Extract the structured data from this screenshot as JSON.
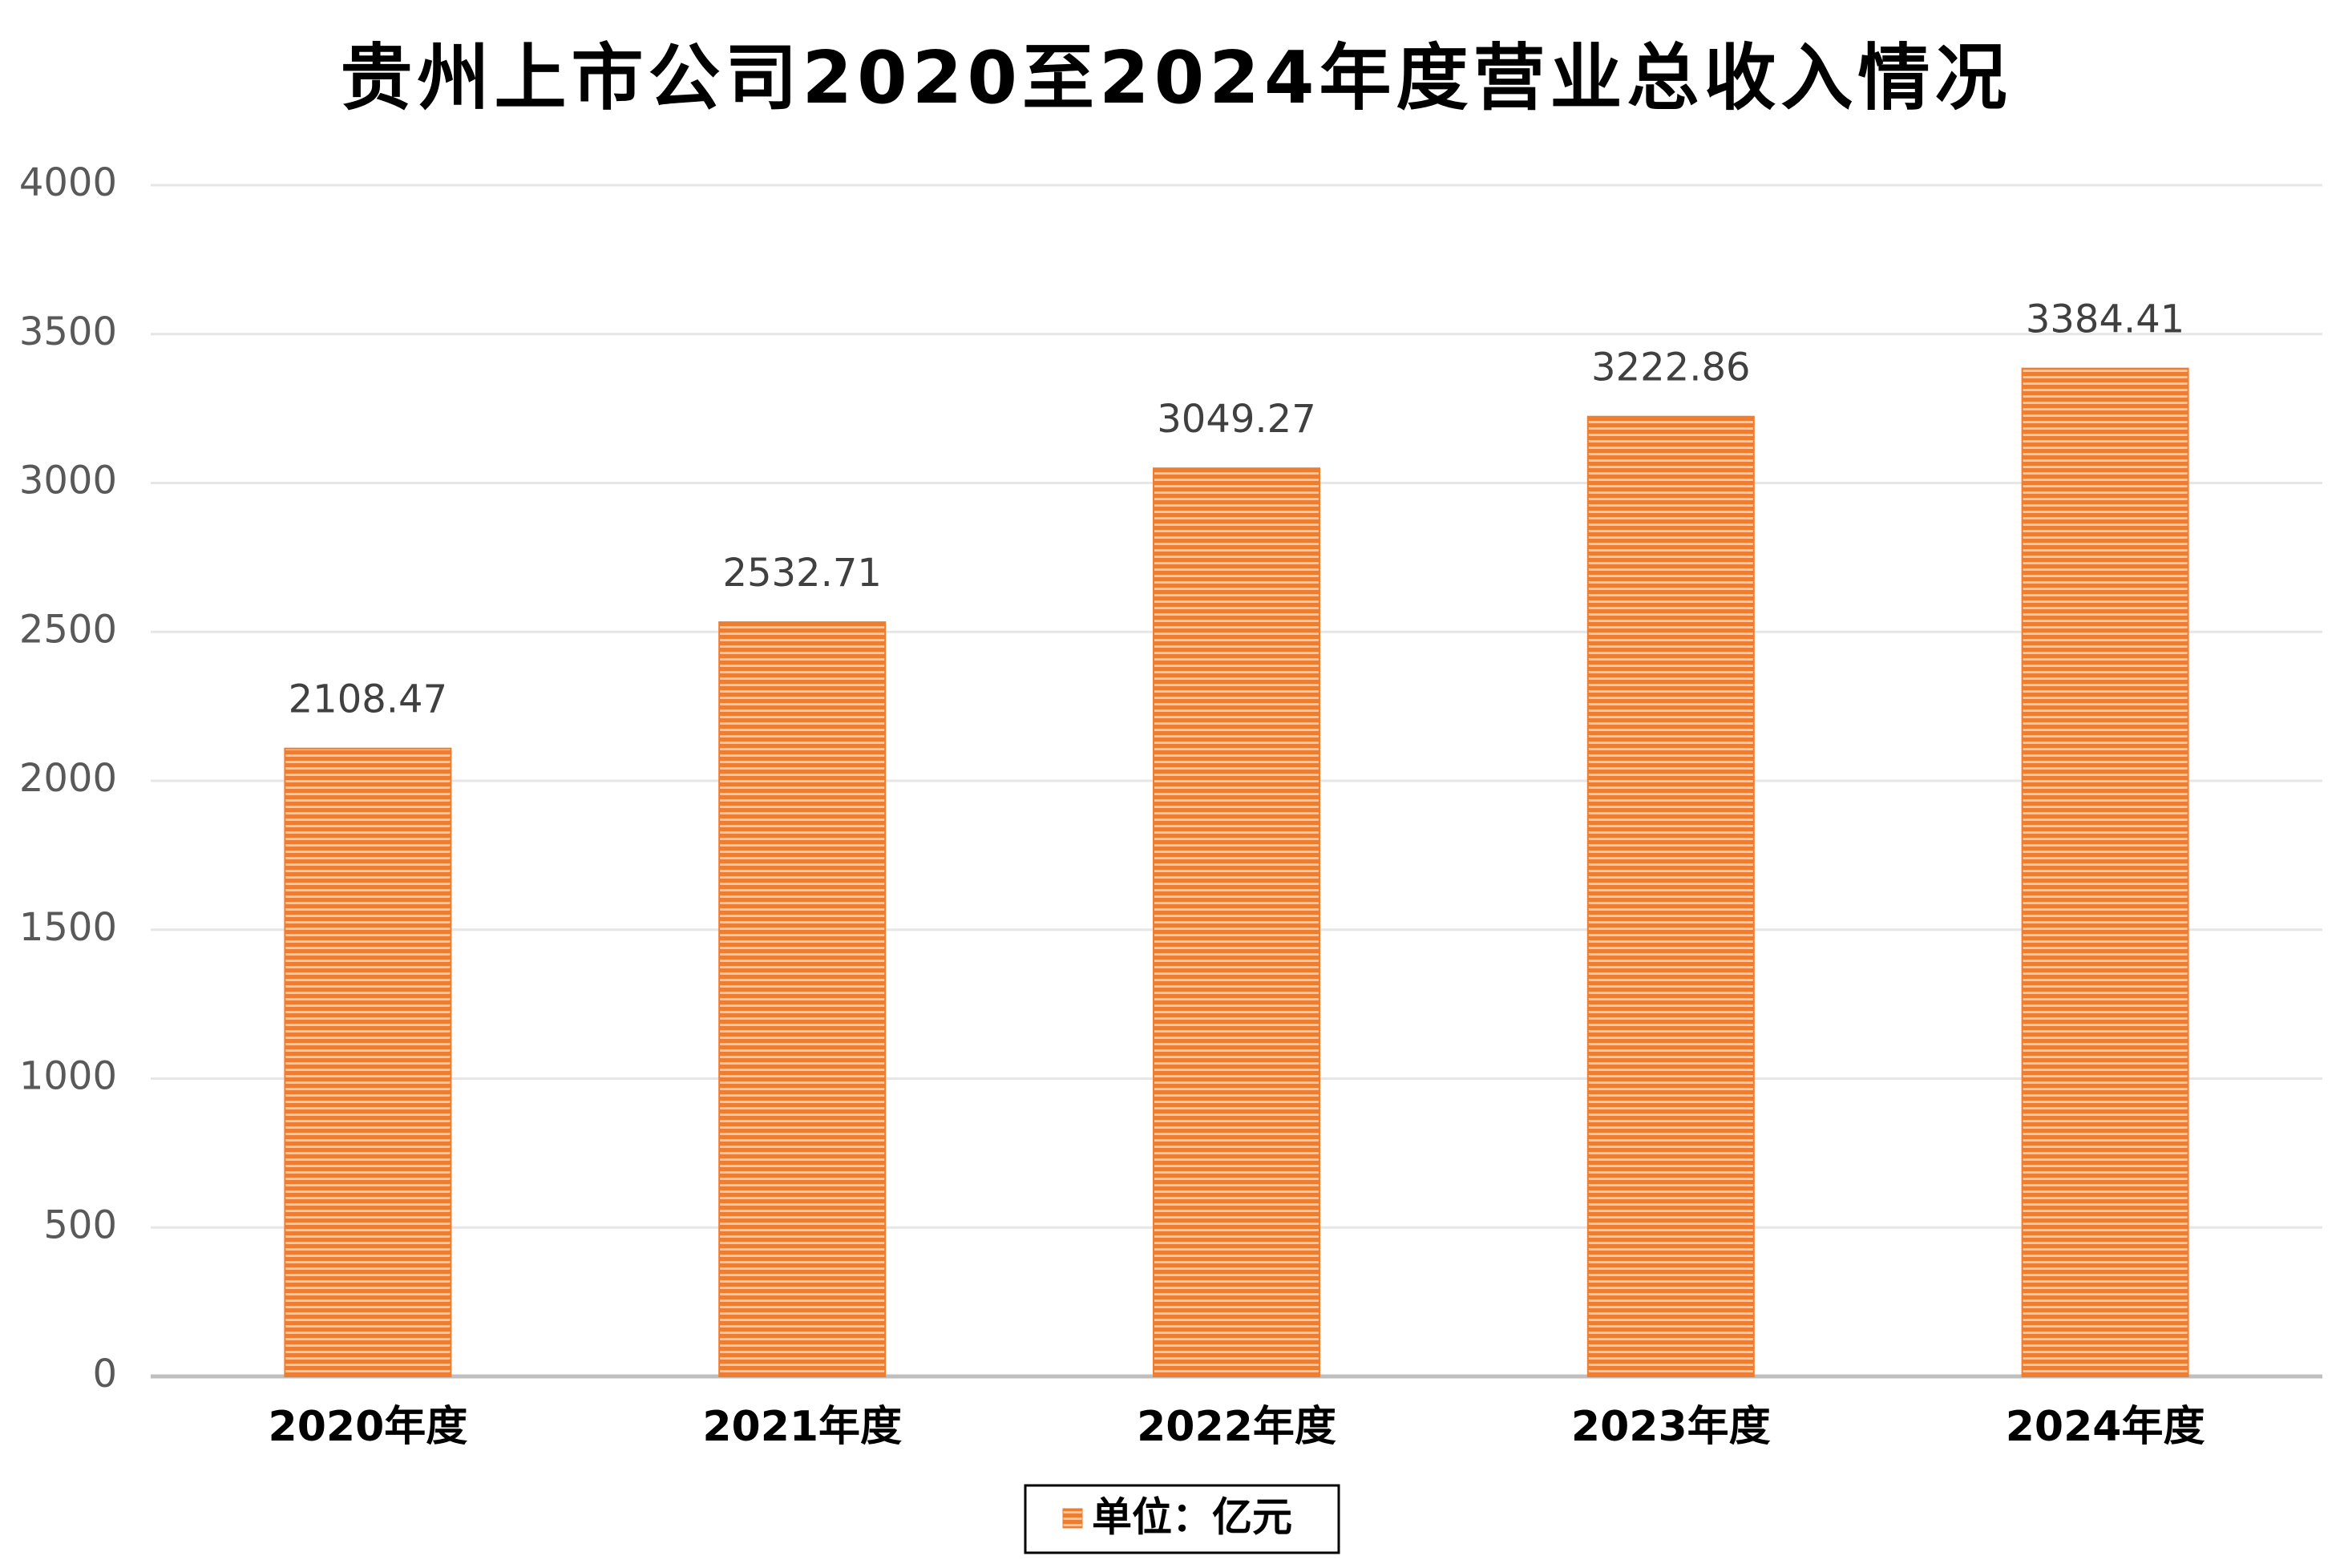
{
  "chart_data": {
    "type": "bar",
    "title": "贵州上市公司2020至2024年度营业总收入情况",
    "categories": [
      "2020年度",
      "2021年度",
      "2022年度",
      "2023年度",
      "2024年度"
    ],
    "series": [
      {
        "name": "单位：亿元",
        "color": "#ed7d31",
        "values": [
          2108.47,
          2532.71,
          3049.27,
          3222.86,
          3384.41
        ]
      }
    ],
    "ylim": [
      0,
      4000
    ],
    "yticks": [
      0,
      500,
      1000,
      1500,
      2000,
      2500,
      3000,
      3500,
      4000
    ],
    "grid": true,
    "legend": "bottom"
  }
}
